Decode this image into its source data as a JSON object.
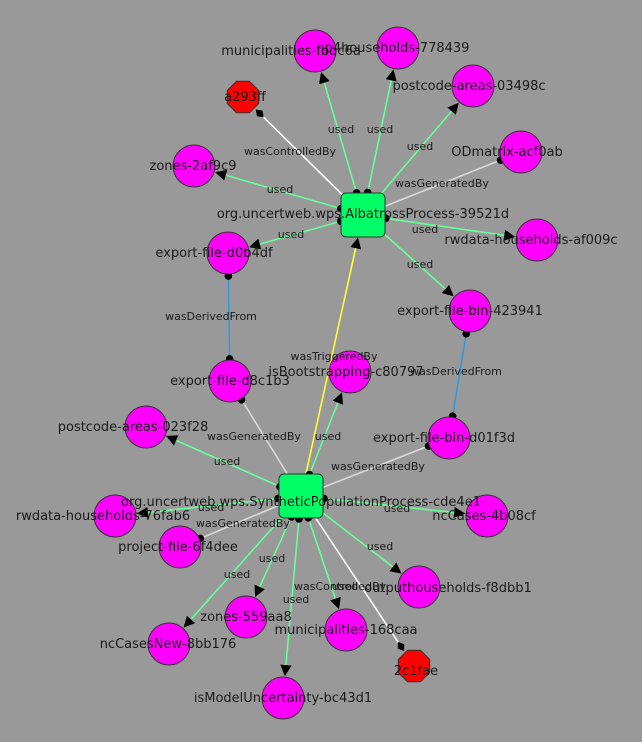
{
  "graph": {
    "background": "#999999",
    "colors": {
      "entity_fill": "#ff00ff",
      "agent_fill": "#ff0000",
      "process_fill": "#00ff66",
      "used_edge": "#66ff99",
      "generated_edge": "#d9d9d9",
      "controlled_edge": "#ffffff",
      "derived_edge": "#3399dd",
      "triggered_edge": "#ffff33"
    },
    "nodes": [
      {
        "id": "p1",
        "kind": "process",
        "label": "org.uncertweb.wps.AlbatrossProcess-39521d"
      },
      {
        "id": "p2",
        "kind": "process",
        "label": "org.uncertweb.wps.SyntheticPopulationProcess-cde4e1"
      },
      {
        "id": "a1",
        "kind": "agent",
        "label": "a293ff"
      },
      {
        "id": "a2",
        "kind": "agent",
        "label": "2c1fae"
      },
      {
        "id": "e_muni1",
        "kind": "entity",
        "label": "municipalities-fbdc6a"
      },
      {
        "id": "e_hh1",
        "kind": "entity",
        "label": "p4households-778439"
      },
      {
        "id": "e_pc1",
        "kind": "entity",
        "label": "postcode-areas-03498c"
      },
      {
        "id": "e_zones1",
        "kind": "entity",
        "label": "zones-2af9c9"
      },
      {
        "id": "e_od",
        "kind": "entity",
        "label": "ODmatrix-acf0ab"
      },
      {
        "id": "e_rw1",
        "kind": "entity",
        "label": "rwdata-households-af009c"
      },
      {
        "id": "e_exp1",
        "kind": "entity",
        "label": "export-file-d0b4df"
      },
      {
        "id": "e_expbin1",
        "kind": "entity",
        "label": "export-file-bin-423941"
      },
      {
        "id": "e_exp2",
        "kind": "entity",
        "label": "export-file-d8c1b3"
      },
      {
        "id": "e_boot",
        "kind": "entity",
        "label": "isBootstrapping-c80797"
      },
      {
        "id": "e_pc2",
        "kind": "entity",
        "label": "postcode-areas-023f28"
      },
      {
        "id": "e_expbin2",
        "kind": "entity",
        "label": "export-file-bin-d01f3d"
      },
      {
        "id": "e_rw2",
        "kind": "entity",
        "label": "rwdata-households-76fab6"
      },
      {
        "id": "e_ncc",
        "kind": "entity",
        "label": "ncCases-4b08cf"
      },
      {
        "id": "e_proj",
        "kind": "entity",
        "label": "project-file-6f4dee"
      },
      {
        "id": "e_outhh",
        "kind": "entity",
        "label": "outputhouseholds-f8dbb1"
      },
      {
        "id": "e_zones2",
        "kind": "entity",
        "label": "zones-559aa8"
      },
      {
        "id": "e_nccnew",
        "kind": "entity",
        "label": "ncCasesNew-8bb176"
      },
      {
        "id": "e_muni2",
        "kind": "entity",
        "label": "municipalities-168caa"
      },
      {
        "id": "e_model",
        "kind": "entity",
        "label": "isModelUncertainty-bc43d1"
      }
    ],
    "edges": [
      {
        "from": "p1",
        "to": "e_muni1",
        "type": "used",
        "label": "used"
      },
      {
        "from": "p1",
        "to": "e_hh1",
        "type": "used",
        "label": "used"
      },
      {
        "from": "p1",
        "to": "e_pc1",
        "type": "used",
        "label": "used"
      },
      {
        "from": "p1",
        "to": "a1",
        "type": "controlled",
        "label": "wasControlledBy"
      },
      {
        "from": "p1",
        "to": "e_zones1",
        "type": "used",
        "label": "used"
      },
      {
        "from": "e_od",
        "to": "p1",
        "type": "generated",
        "label": "wasGeneratedBy"
      },
      {
        "from": "p1",
        "to": "e_rw1",
        "type": "used",
        "label": "used"
      },
      {
        "from": "p1",
        "to": "e_exp1",
        "type": "used",
        "label": "used"
      },
      {
        "from": "p1",
        "to": "e_expbin1",
        "type": "used",
        "label": "used"
      },
      {
        "from": "e_exp2",
        "to": "e_exp1",
        "type": "derived",
        "label": "wasDerivedFrom"
      },
      {
        "from": "e_expbin2",
        "to": "e_expbin1",
        "type": "derived",
        "label": "wasDerivedFrom"
      },
      {
        "from": "p2",
        "to": "p1",
        "type": "triggered",
        "label": "wasTriggeredBy"
      },
      {
        "from": "e_exp2",
        "to": "p2",
        "type": "generated",
        "label": "wasGeneratedBy"
      },
      {
        "from": "e_expbin2",
        "to": "p2",
        "type": "generated",
        "label": "wasGeneratedBy"
      },
      {
        "from": "p2",
        "to": "e_boot",
        "type": "used",
        "label": "used"
      },
      {
        "from": "p2",
        "to": "e_pc2",
        "type": "used",
        "label": "used"
      },
      {
        "from": "p2",
        "to": "e_rw2",
        "type": "used",
        "label": "used"
      },
      {
        "from": "e_proj",
        "to": "p2",
        "type": "generated",
        "label": "wasGeneratedBy"
      },
      {
        "from": "p2",
        "to": "e_ncc",
        "type": "used",
        "label": "used"
      },
      {
        "from": "p2",
        "to": "e_outhh",
        "type": "used",
        "label": "used"
      },
      {
        "from": "p2",
        "to": "e_zones2",
        "type": "used",
        "label": "used"
      },
      {
        "from": "p2",
        "to": "e_nccnew",
        "type": "used",
        "label": "used"
      },
      {
        "from": "p2",
        "to": "e_muni2",
        "type": "used",
        "label": "used"
      },
      {
        "from": "p2",
        "to": "e_model",
        "type": "used",
        "label": "used"
      },
      {
        "from": "p2",
        "to": "a2",
        "type": "controlled",
        "label": "wasControlledBy"
      }
    ]
  }
}
